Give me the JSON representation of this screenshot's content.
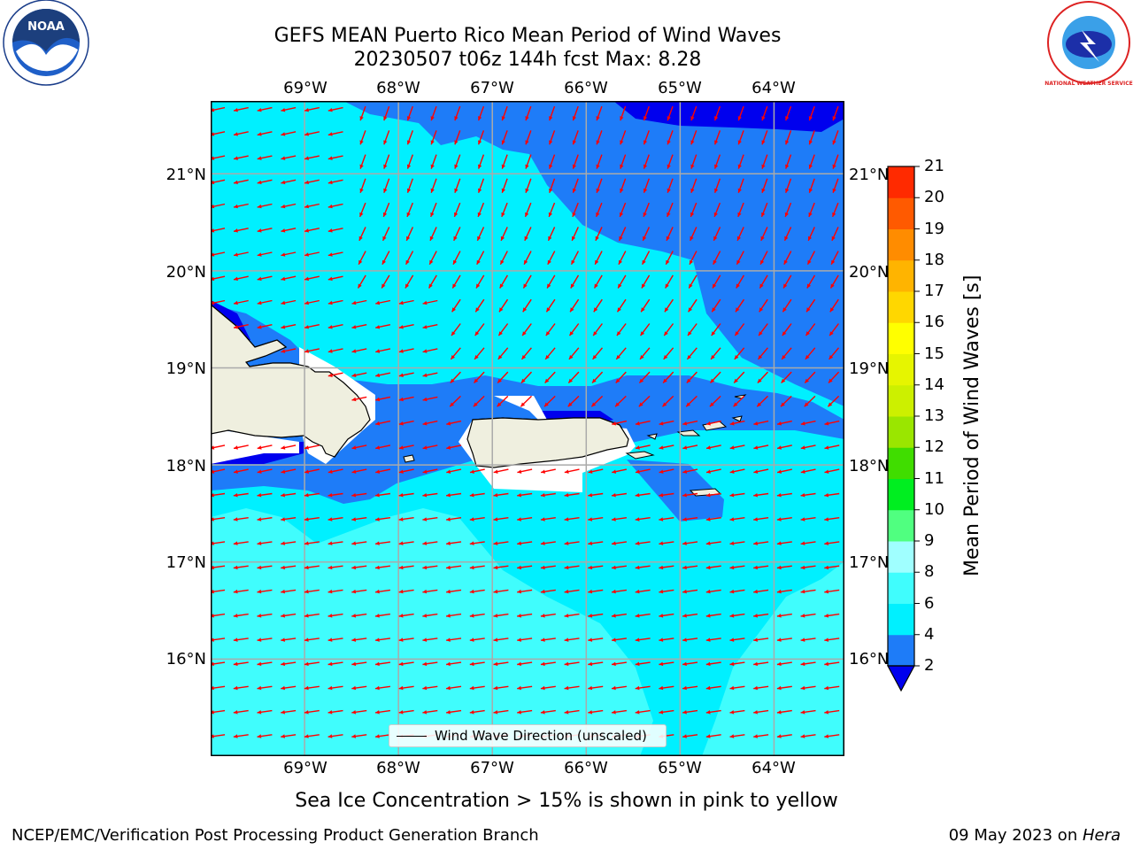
{
  "title": {
    "line1": "GEFS MEAN Puerto Rico Mean Period of Wind Waves",
    "line2": "20230507 t06z 144h fcst   Max: 8.28"
  },
  "logos": {
    "left": {
      "name": "NOAA",
      "ring_text": "NATIONAL OCEANIC AND ATMOSPHERIC ADMINISTRATION · U.S. DEPARTMENT OF COMMERCE",
      "icon": "noaa-logo-icon"
    },
    "right": {
      "name": "NATIONAL WEATHER SERVICE",
      "icon": "nws-logo-icon"
    }
  },
  "map": {
    "lon_range": [
      -70.0,
      -63.25
    ],
    "lat_range": [
      15.0,
      21.75
    ],
    "lon_ticks": [
      "69°W",
      "68°W",
      "67°W",
      "66°W",
      "65°W",
      "64°W"
    ],
    "lat_ticks": [
      "21°N",
      "20°N",
      "19°N",
      "18°N",
      "17°N",
      "16°N"
    ],
    "grid": true,
    "ocean_colors": {
      "2-4": "#1e7cf8",
      "4-6": "#00f0ff",
      "6-8": "#40fdfd",
      "below-2": "#0000ee"
    },
    "land_color": "#efefdf",
    "arrow_color": "#ff0000",
    "legend": {
      "entry": "Wind Wave Direction (unscaled)",
      "placement": "lower-center"
    }
  },
  "colorbar": {
    "label": "Mean Period of Wind Waves [s]",
    "ticks": [
      "2",
      "4",
      "6",
      "8",
      "9",
      "10",
      "11",
      "12",
      "13",
      "14",
      "15",
      "16",
      "17",
      "18",
      "19",
      "20",
      "21"
    ],
    "levels": [
      2,
      4,
      6,
      8,
      9,
      10,
      11,
      12,
      13,
      14,
      15,
      16,
      17,
      18,
      19,
      20,
      21
    ],
    "colors": [
      "#1e7cf8",
      "#00f0ff",
      "#40fdfd",
      "#a0ffff",
      "#50ff80",
      "#00ee20",
      "#40dd00",
      "#9ae600",
      "#ccf000",
      "#e6f500",
      "#ffff00",
      "#ffd700",
      "#ffb400",
      "#ff8c00",
      "#ff5a00",
      "#ff2a00",
      "#ff0000"
    ],
    "under_color": "#0000ee"
  },
  "note": "Sea Ice Concentration > 15% is shown in pink to yellow",
  "footer": {
    "left": "NCEP/EMC/Verification Post Processing Product Generation Branch",
    "date": "09 May 2023 on ",
    "machine": "Hera"
  }
}
